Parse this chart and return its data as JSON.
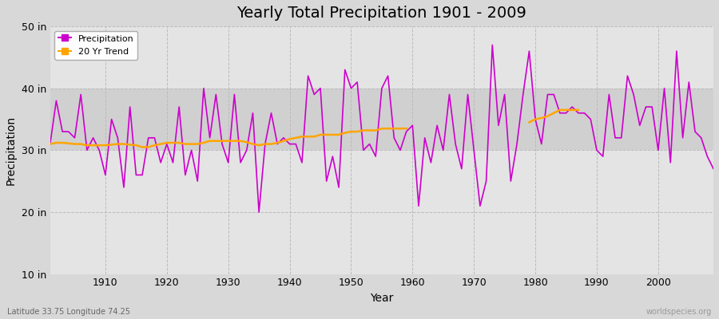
{
  "title": "Yearly Total Precipitation 1901 - 2009",
  "xlabel": "Year",
  "ylabel": "Precipitation",
  "lat_lon_label": "Latitude 33.75 Longitude 74.25",
  "watermark": "worldspecies.org",
  "ylim": [
    10,
    50
  ],
  "yticks": [
    10,
    20,
    30,
    40,
    50
  ],
  "ytick_labels": [
    "10 in",
    "20 in",
    "30 in",
    "40 in",
    "50 in"
  ],
  "fig_bg_color": "#d8d8d8",
  "plot_bg_color": "#e4e4e4",
  "band_color": "#d0d0d0",
  "precip_color": "#cc00cc",
  "trend_color": "#ffa500",
  "precip_linewidth": 1.2,
  "trend_linewidth": 1.8,
  "years": [
    1901,
    1902,
    1903,
    1904,
    1905,
    1906,
    1907,
    1908,
    1909,
    1910,
    1911,
    1912,
    1913,
    1914,
    1915,
    1916,
    1917,
    1918,
    1919,
    1920,
    1921,
    1922,
    1923,
    1924,
    1925,
    1926,
    1927,
    1928,
    1929,
    1930,
    1931,
    1932,
    1933,
    1934,
    1935,
    1936,
    1937,
    1938,
    1939,
    1940,
    1941,
    1942,
    1943,
    1944,
    1945,
    1946,
    1947,
    1948,
    1949,
    1950,
    1951,
    1952,
    1953,
    1954,
    1955,
    1956,
    1957,
    1958,
    1959,
    1960,
    1961,
    1962,
    1963,
    1964,
    1965,
    1966,
    1967,
    1968,
    1969,
    1970,
    1971,
    1972,
    1973,
    1974,
    1975,
    1976,
    1977,
    1978,
    1979,
    1980,
    1981,
    1982,
    1983,
    1984,
    1985,
    1986,
    1987,
    1988,
    1989,
    1990,
    1991,
    1992,
    1993,
    1994,
    1995,
    1996,
    1997,
    1998,
    1999,
    2000,
    2001,
    2002,
    2003,
    2004,
    2005,
    2006,
    2007,
    2008,
    2009
  ],
  "precip": [
    31,
    38,
    33,
    33,
    32,
    39,
    30,
    32,
    30,
    26,
    35,
    32,
    24,
    37,
    26,
    26,
    32,
    32,
    28,
    31,
    28,
    37,
    26,
    30,
    25,
    40,
    32,
    39,
    31,
    28,
    39,
    28,
    30,
    36,
    20,
    31,
    36,
    31,
    32,
    31,
    31,
    28,
    42,
    39,
    40,
    25,
    29,
    24,
    43,
    40,
    41,
    30,
    31,
    29,
    40,
    42,
    32,
    30,
    33,
    34,
    21,
    32,
    28,
    34,
    30,
    39,
    31,
    27,
    39,
    30,
    21,
    25,
    47,
    34,
    39,
    25,
    31,
    39,
    46,
    35,
    31,
    39,
    39,
    36,
    36,
    37,
    36,
    36,
    35,
    30,
    29,
    39,
    32,
    32,
    42,
    39,
    34,
    37,
    37,
    30,
    40,
    28,
    46,
    32,
    41,
    33,
    32,
    29,
    27
  ],
  "trend_seg1_years": [
    1901,
    1902,
    1903,
    1904,
    1905,
    1906,
    1907,
    1908,
    1909,
    1910,
    1911,
    1912,
    1913,
    1914,
    1915,
    1916,
    1917,
    1918,
    1919,
    1920,
    1921,
    1922,
    1923,
    1924,
    1925,
    1926,
    1927,
    1928,
    1929,
    1930,
    1931,
    1932,
    1933,
    1934,
    1935,
    1936,
    1937,
    1938,
    1939,
    1940,
    1941,
    1942,
    1943,
    1944,
    1945,
    1946,
    1947,
    1948,
    1949,
    1950,
    1951,
    1952,
    1953,
    1954,
    1955,
    1956,
    1957,
    1958,
    1959
  ],
  "trend_seg1_values": [
    31.0,
    31.2,
    31.2,
    31.1,
    31.0,
    31.0,
    30.8,
    30.8,
    30.8,
    30.8,
    30.9,
    31.0,
    31.0,
    30.9,
    30.8,
    30.5,
    30.5,
    30.8,
    31.0,
    31.2,
    31.2,
    31.2,
    31.0,
    31.0,
    31.0,
    31.2,
    31.5,
    31.5,
    31.5,
    31.5,
    31.5,
    31.5,
    31.3,
    31.0,
    30.8,
    31.0,
    31.0,
    31.2,
    31.5,
    31.8,
    32.0,
    32.2,
    32.2,
    32.2,
    32.5,
    32.5,
    32.5,
    32.5,
    32.8,
    33.0,
    33.0,
    33.2,
    33.2,
    33.2,
    33.5,
    33.5,
    33.5,
    33.5,
    33.5
  ],
  "trend_seg2_years": [
    1979,
    1980,
    1981,
    1982,
    1983,
    1984,
    1985,
    1986,
    1987
  ],
  "trend_seg2_values": [
    34.5,
    35.0,
    35.2,
    35.5,
    36.0,
    36.5,
    36.5,
    36.5,
    36.5
  ],
  "xlim": [
    1901,
    2009
  ],
  "title_fontsize": 14,
  "axis_fontsize": 9,
  "label_fontsize": 10
}
